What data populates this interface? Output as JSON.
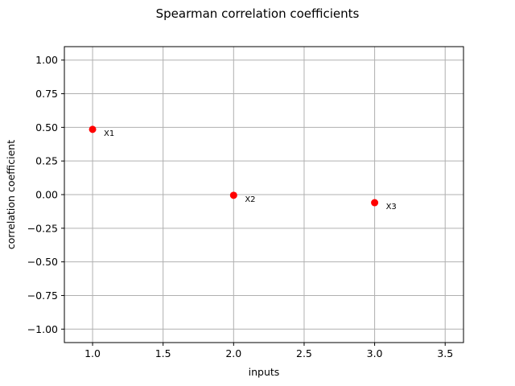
{
  "chart_data": {
    "type": "scatter",
    "title": "Spearman correlation coefficients",
    "xlabel": "inputs",
    "ylabel": "correlation coefficient",
    "xlim": [
      0.8,
      3.63
    ],
    "ylim": [
      -1.1,
      1.1
    ],
    "xticks": [
      1.0,
      1.5,
      2.0,
      2.5,
      3.0,
      3.5
    ],
    "xtick_labels": [
      "1.0",
      "1.5",
      "2.0",
      "2.5",
      "3.0",
      "3.5"
    ],
    "yticks": [
      1.0,
      0.75,
      0.5,
      0.25,
      0.0,
      -0.25,
      -0.5,
      -0.75,
      -1.0
    ],
    "ytick_labels": [
      "1.00",
      "0.75",
      "0.50",
      "0.25",
      "0.00",
      "−0.25",
      "−0.50",
      "−0.75",
      "−1.00"
    ],
    "grid": true,
    "marker_color": "#ff0000",
    "points": [
      {
        "x": 1,
        "y": 0.485,
        "label": "X1"
      },
      {
        "x": 2,
        "y": -0.005,
        "label": "X2"
      },
      {
        "x": 3,
        "y": -0.06,
        "label": "X3"
      }
    ]
  }
}
